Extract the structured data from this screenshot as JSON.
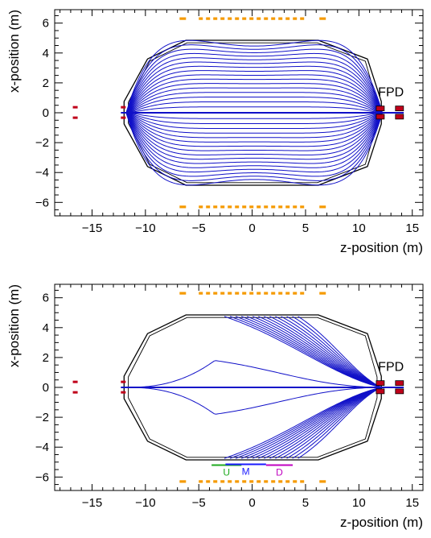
{
  "chart_data": [
    {
      "type": "line",
      "panel": "top",
      "xlabel": "z-position (m)",
      "ylabel": "x-position (m)",
      "xlim": [
        -18.5,
        16
      ],
      "ylim": [
        -6.9,
        6.9
      ],
      "xticks": [
        -15,
        -10,
        -5,
        0,
        5,
        10,
        15
      ],
      "yticks": [
        -6,
        -4,
        -2,
        0,
        2,
        4,
        6
      ],
      "tick_labels_x": [
        "−15",
        "−10",
        "−5",
        "0",
        "5",
        "10",
        "15"
      ],
      "tick_labels_y": [
        "−6",
        "−4",
        "−2",
        "0",
        "2",
        "4",
        "6"
      ],
      "annotations": [
        {
          "text": "FPD",
          "x": 13,
          "y": 1.1
        }
      ],
      "segment_labels": [],
      "flux_tube": {
        "z_left": -11.8,
        "z_right": 12.2,
        "edge_fraction": 0.93,
        "max_radius": 4.75,
        "n_lines_per_side": 16,
        "colour": "#1010c8"
      },
      "vessel": {
        "colour": "#000000"
      },
      "coils": {
        "colour": "#f59a00",
        "z_range": [
          -6.8,
          6.9
        ],
        "x": [
          6.3,
          -6.3
        ]
      },
      "detector_magnets": {
        "colour": "#c0001a"
      }
    },
    {
      "type": "line",
      "panel": "bottom",
      "xlabel": "z-position (m)",
      "ylabel": "x-position (m)",
      "xlim": [
        -18.5,
        16
      ],
      "ylim": [
        -6.9,
        6.9
      ],
      "xticks": [
        -15,
        -10,
        -5,
        0,
        5,
        10,
        15
      ],
      "yticks": [
        -6,
        -4,
        -2,
        0,
        2,
        4,
        6
      ],
      "tick_labels_x": [
        "−15",
        "−10",
        "−5",
        "0",
        "5",
        "10",
        "15"
      ],
      "tick_labels_y": [
        "−6",
        "−4",
        "−2",
        "0",
        "2",
        "4",
        "6"
      ],
      "annotations": [
        {
          "text": "FPD",
          "x": 13,
          "y": 1.1
        }
      ],
      "segment_labels": [
        {
          "text": "U",
          "colour": "#1faa1f",
          "z_range": [
            -3.8,
            -1.0
          ],
          "x": -5.2
        },
        {
          "text": "M",
          "colour": "#1a1aff",
          "z_range": [
            -2.5,
            1.3
          ],
          "x": -5.15
        },
        {
          "text": "D",
          "colour": "#c000c0",
          "z_range": [
            1.3,
            3.8
          ],
          "x": -5.2
        }
      ],
      "field_lines": {
        "n_lines_per_side": 14,
        "wall_start_z": -2.6,
        "wall_end_z": 4.3,
        "inner_bump": {
          "z": -3.5,
          "x": 1.8
        },
        "colour": "#1010c8"
      },
      "vessel": {
        "colour": "#000000"
      },
      "coils": {
        "colour": "#f59a00",
        "z_range": [
          -6.8,
          6.9
        ],
        "x": [
          6.3,
          -6.3
        ]
      },
      "detector_magnets": {
        "colour": "#c0001a"
      }
    }
  ]
}
